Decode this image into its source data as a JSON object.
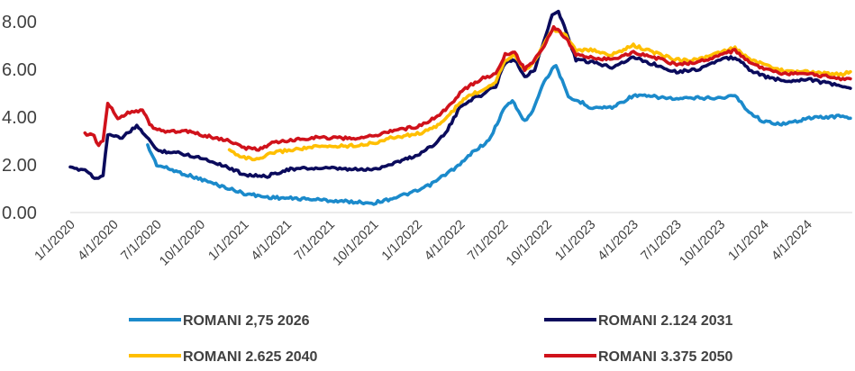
{
  "chart_data": {
    "type": "line",
    "title": "",
    "xlabel": "",
    "ylabel": "",
    "ylim": [
      0,
      8.6
    ],
    "yticks": [
      "0.00",
      "2.00",
      "4.00",
      "6.00",
      "8.00"
    ],
    "xticks": [
      "1/1/2020",
      "4/1/2020",
      "7/1/2020",
      "10/1/2020",
      "1/1/2021",
      "4/1/2021",
      "7/1/2021",
      "10/1/2021",
      "1/1/2022",
      "4/1/2022",
      "7/1/2022",
      "10/1/2022",
      "1/1/2023",
      "4/1/2023",
      "7/1/2023",
      "10/1/2023",
      "1/1/2024",
      "4/1/2024"
    ],
    "grid": false,
    "legend_position": "bottom",
    "series": [
      {
        "name": "ROMANI 2,75 2026",
        "color": "#1B8ACB",
        "points": [
          [
            "2020-06-12",
            2.8
          ],
          [
            "2020-07-01",
            2.0
          ],
          [
            "2020-08-15",
            1.7
          ],
          [
            "2020-10-01",
            1.4
          ],
          [
            "2020-11-15",
            1.1
          ],
          [
            "2021-01-01",
            0.8
          ],
          [
            "2021-02-15",
            0.65
          ],
          [
            "2021-04-01",
            0.6
          ],
          [
            "2021-06-01",
            0.55
          ],
          [
            "2021-07-01",
            0.5
          ],
          [
            "2021-08-15",
            0.45
          ],
          [
            "2021-10-01",
            0.4
          ],
          [
            "2021-11-01",
            0.55
          ],
          [
            "2022-01-01",
            0.9
          ],
          [
            "2022-02-01",
            1.2
          ],
          [
            "2022-03-01",
            1.6
          ],
          [
            "2022-04-01",
            2.0
          ],
          [
            "2022-05-01",
            2.6
          ],
          [
            "2022-06-01",
            3.0
          ],
          [
            "2022-07-01",
            4.3
          ],
          [
            "2022-07-20",
            4.7
          ],
          [
            "2022-08-15",
            3.8
          ],
          [
            "2022-09-01",
            4.3
          ],
          [
            "2022-09-25",
            5.5
          ],
          [
            "2022-10-20",
            6.2
          ],
          [
            "2022-11-15",
            4.8
          ],
          [
            "2022-12-15",
            4.6
          ],
          [
            "2023-01-01",
            4.4
          ],
          [
            "2023-02-15",
            4.4
          ],
          [
            "2023-04-01",
            4.9
          ],
          [
            "2023-05-15",
            4.85
          ],
          [
            "2023-07-01",
            4.75
          ],
          [
            "2023-08-15",
            4.8
          ],
          [
            "2023-10-01",
            4.8
          ],
          [
            "2023-11-01",
            4.9
          ],
          [
            "2023-12-01",
            4.2
          ],
          [
            "2024-01-01",
            3.8
          ],
          [
            "2024-02-15",
            3.7
          ],
          [
            "2024-04-01",
            3.95
          ],
          [
            "2024-05-15",
            4.0
          ],
          [
            "2024-06-15",
            4.05
          ],
          [
            "2024-07-01",
            3.95
          ]
        ]
      },
      {
        "name": "ROMANI 2.124 2031",
        "color": "#0B0B5C",
        "points": [
          [
            "2020-01-01",
            1.85
          ],
          [
            "2020-02-01",
            1.8
          ],
          [
            "2020-02-25",
            1.4
          ],
          [
            "2020-03-10",
            1.6
          ],
          [
            "2020-03-20",
            3.3
          ],
          [
            "2020-04-15",
            3.1
          ],
          [
            "2020-05-20",
            3.6
          ],
          [
            "2020-06-10",
            3.2
          ],
          [
            "2020-07-01",
            2.6
          ],
          [
            "2020-08-15",
            2.5
          ],
          [
            "2020-10-01",
            2.3
          ],
          [
            "2020-11-15",
            2.0
          ],
          [
            "2021-01-01",
            1.6
          ],
          [
            "2021-02-15",
            1.5
          ],
          [
            "2021-04-01",
            1.8
          ],
          [
            "2021-05-15",
            1.85
          ],
          [
            "2021-07-01",
            1.85
          ],
          [
            "2021-08-15",
            1.8
          ],
          [
            "2021-10-01",
            1.8
          ],
          [
            "2021-11-01",
            2.0
          ],
          [
            "2022-01-01",
            2.4
          ],
          [
            "2022-02-01",
            2.8
          ],
          [
            "2022-03-01",
            3.3
          ],
          [
            "2022-04-01",
            4.4
          ],
          [
            "2022-04-20",
            4.7
          ],
          [
            "2022-05-15",
            4.9
          ],
          [
            "2022-06-15",
            5.3
          ],
          [
            "2022-07-05",
            6.3
          ],
          [
            "2022-07-25",
            6.4
          ],
          [
            "2022-08-15",
            5.7
          ],
          [
            "2022-09-05",
            6.0
          ],
          [
            "2022-09-25",
            7.2
          ],
          [
            "2022-10-12",
            8.3
          ],
          [
            "2022-10-25",
            8.4
          ],
          [
            "2022-11-10",
            7.6
          ],
          [
            "2022-12-01",
            6.4
          ],
          [
            "2023-01-01",
            6.3
          ],
          [
            "2023-02-15",
            6.1
          ],
          [
            "2023-04-01",
            6.5
          ],
          [
            "2023-05-15",
            6.2
          ],
          [
            "2023-07-01",
            5.9
          ],
          [
            "2023-08-15",
            6.0
          ],
          [
            "2023-10-01",
            6.4
          ],
          [
            "2023-11-01",
            6.5
          ],
          [
            "2023-12-01",
            6.0
          ],
          [
            "2024-01-01",
            5.7
          ],
          [
            "2024-02-15",
            5.5
          ],
          [
            "2024-04-01",
            5.6
          ],
          [
            "2024-05-15",
            5.4
          ],
          [
            "2024-06-15",
            5.3
          ],
          [
            "2024-07-01",
            5.2
          ]
        ]
      },
      {
        "name": "ROMANI 2.625 2040",
        "color": "#FFBF00",
        "points": [
          [
            "2020-12-01",
            2.6
          ],
          [
            "2021-01-01",
            2.3
          ],
          [
            "2021-02-01",
            2.2
          ],
          [
            "2021-03-01",
            2.5
          ],
          [
            "2021-04-01",
            2.6
          ],
          [
            "2021-06-01",
            2.75
          ],
          [
            "2021-08-15",
            2.8
          ],
          [
            "2021-10-01",
            2.9
          ],
          [
            "2021-11-01",
            3.1
          ],
          [
            "2022-01-01",
            3.3
          ],
          [
            "2022-02-01",
            3.5
          ],
          [
            "2022-03-01",
            3.9
          ],
          [
            "2022-04-01",
            4.6
          ],
          [
            "2022-04-20",
            4.9
          ],
          [
            "2022-05-15",
            5.1
          ],
          [
            "2022-06-15",
            5.5
          ],
          [
            "2022-07-05",
            6.4
          ],
          [
            "2022-07-25",
            6.6
          ],
          [
            "2022-08-15",
            6.0
          ],
          [
            "2022-09-05",
            6.3
          ],
          [
            "2022-09-25",
            7.1
          ],
          [
            "2022-10-15",
            7.7
          ],
          [
            "2022-11-10",
            7.4
          ],
          [
            "2022-12-01",
            6.8
          ],
          [
            "2023-01-01",
            6.8
          ],
          [
            "2023-02-15",
            6.6
          ],
          [
            "2023-04-01",
            7.0
          ],
          [
            "2023-05-15",
            6.7
          ],
          [
            "2023-07-01",
            6.4
          ],
          [
            "2023-08-15",
            6.4
          ],
          [
            "2023-10-01",
            6.7
          ],
          [
            "2023-11-01",
            6.9
          ],
          [
            "2023-12-01",
            6.4
          ],
          [
            "2024-01-01",
            6.2
          ],
          [
            "2024-02-15",
            5.9
          ],
          [
            "2024-04-01",
            5.9
          ],
          [
            "2024-05-15",
            5.8
          ],
          [
            "2024-06-15",
            5.8
          ],
          [
            "2024-07-01",
            5.9
          ]
        ]
      },
      {
        "name": "ROMANI 3.375 2050",
        "color": "#D0121B",
        "points": [
          [
            "2020-02-01",
            3.3
          ],
          [
            "2020-02-20",
            3.2
          ],
          [
            "2020-03-01",
            2.8
          ],
          [
            "2020-03-10",
            3.0
          ],
          [
            "2020-03-20",
            4.6
          ],
          [
            "2020-04-10",
            3.9
          ],
          [
            "2020-05-01",
            4.2
          ],
          [
            "2020-06-01",
            4.3
          ],
          [
            "2020-06-20",
            3.6
          ],
          [
            "2020-07-15",
            3.4
          ],
          [
            "2020-09-01",
            3.4
          ],
          [
            "2020-10-15",
            3.2
          ],
          [
            "2020-12-01",
            3.0
          ],
          [
            "2021-01-01",
            2.7
          ],
          [
            "2021-02-01",
            2.65
          ],
          [
            "2021-03-01",
            2.9
          ],
          [
            "2021-04-01",
            3.0
          ],
          [
            "2021-06-01",
            3.15
          ],
          [
            "2021-08-15",
            3.1
          ],
          [
            "2021-10-01",
            3.2
          ],
          [
            "2021-11-01",
            3.4
          ],
          [
            "2022-01-01",
            3.6
          ],
          [
            "2022-02-01",
            3.9
          ],
          [
            "2022-03-01",
            4.3
          ],
          [
            "2022-04-01",
            5.0
          ],
          [
            "2022-04-20",
            5.3
          ],
          [
            "2022-05-15",
            5.6
          ],
          [
            "2022-06-15",
            5.8
          ],
          [
            "2022-07-05",
            6.6
          ],
          [
            "2022-07-25",
            6.7
          ],
          [
            "2022-08-15",
            6.0
          ],
          [
            "2022-09-05",
            6.4
          ],
          [
            "2022-09-25",
            7.0
          ],
          [
            "2022-10-15",
            7.8
          ],
          [
            "2022-11-10",
            7.3
          ],
          [
            "2022-12-01",
            6.6
          ],
          [
            "2023-01-01",
            6.5
          ],
          [
            "2023-02-15",
            6.4
          ],
          [
            "2023-04-01",
            6.7
          ],
          [
            "2023-05-15",
            6.5
          ],
          [
            "2023-07-01",
            6.2
          ],
          [
            "2023-08-15",
            6.3
          ],
          [
            "2023-10-01",
            6.6
          ],
          [
            "2023-11-01",
            6.8
          ],
          [
            "2023-12-01",
            6.3
          ],
          [
            "2024-01-01",
            6.0
          ],
          [
            "2024-02-15",
            5.8
          ],
          [
            "2024-04-01",
            5.8
          ],
          [
            "2024-05-15",
            5.7
          ],
          [
            "2024-06-15",
            5.6
          ],
          [
            "2024-07-01",
            5.6
          ]
        ]
      }
    ]
  }
}
